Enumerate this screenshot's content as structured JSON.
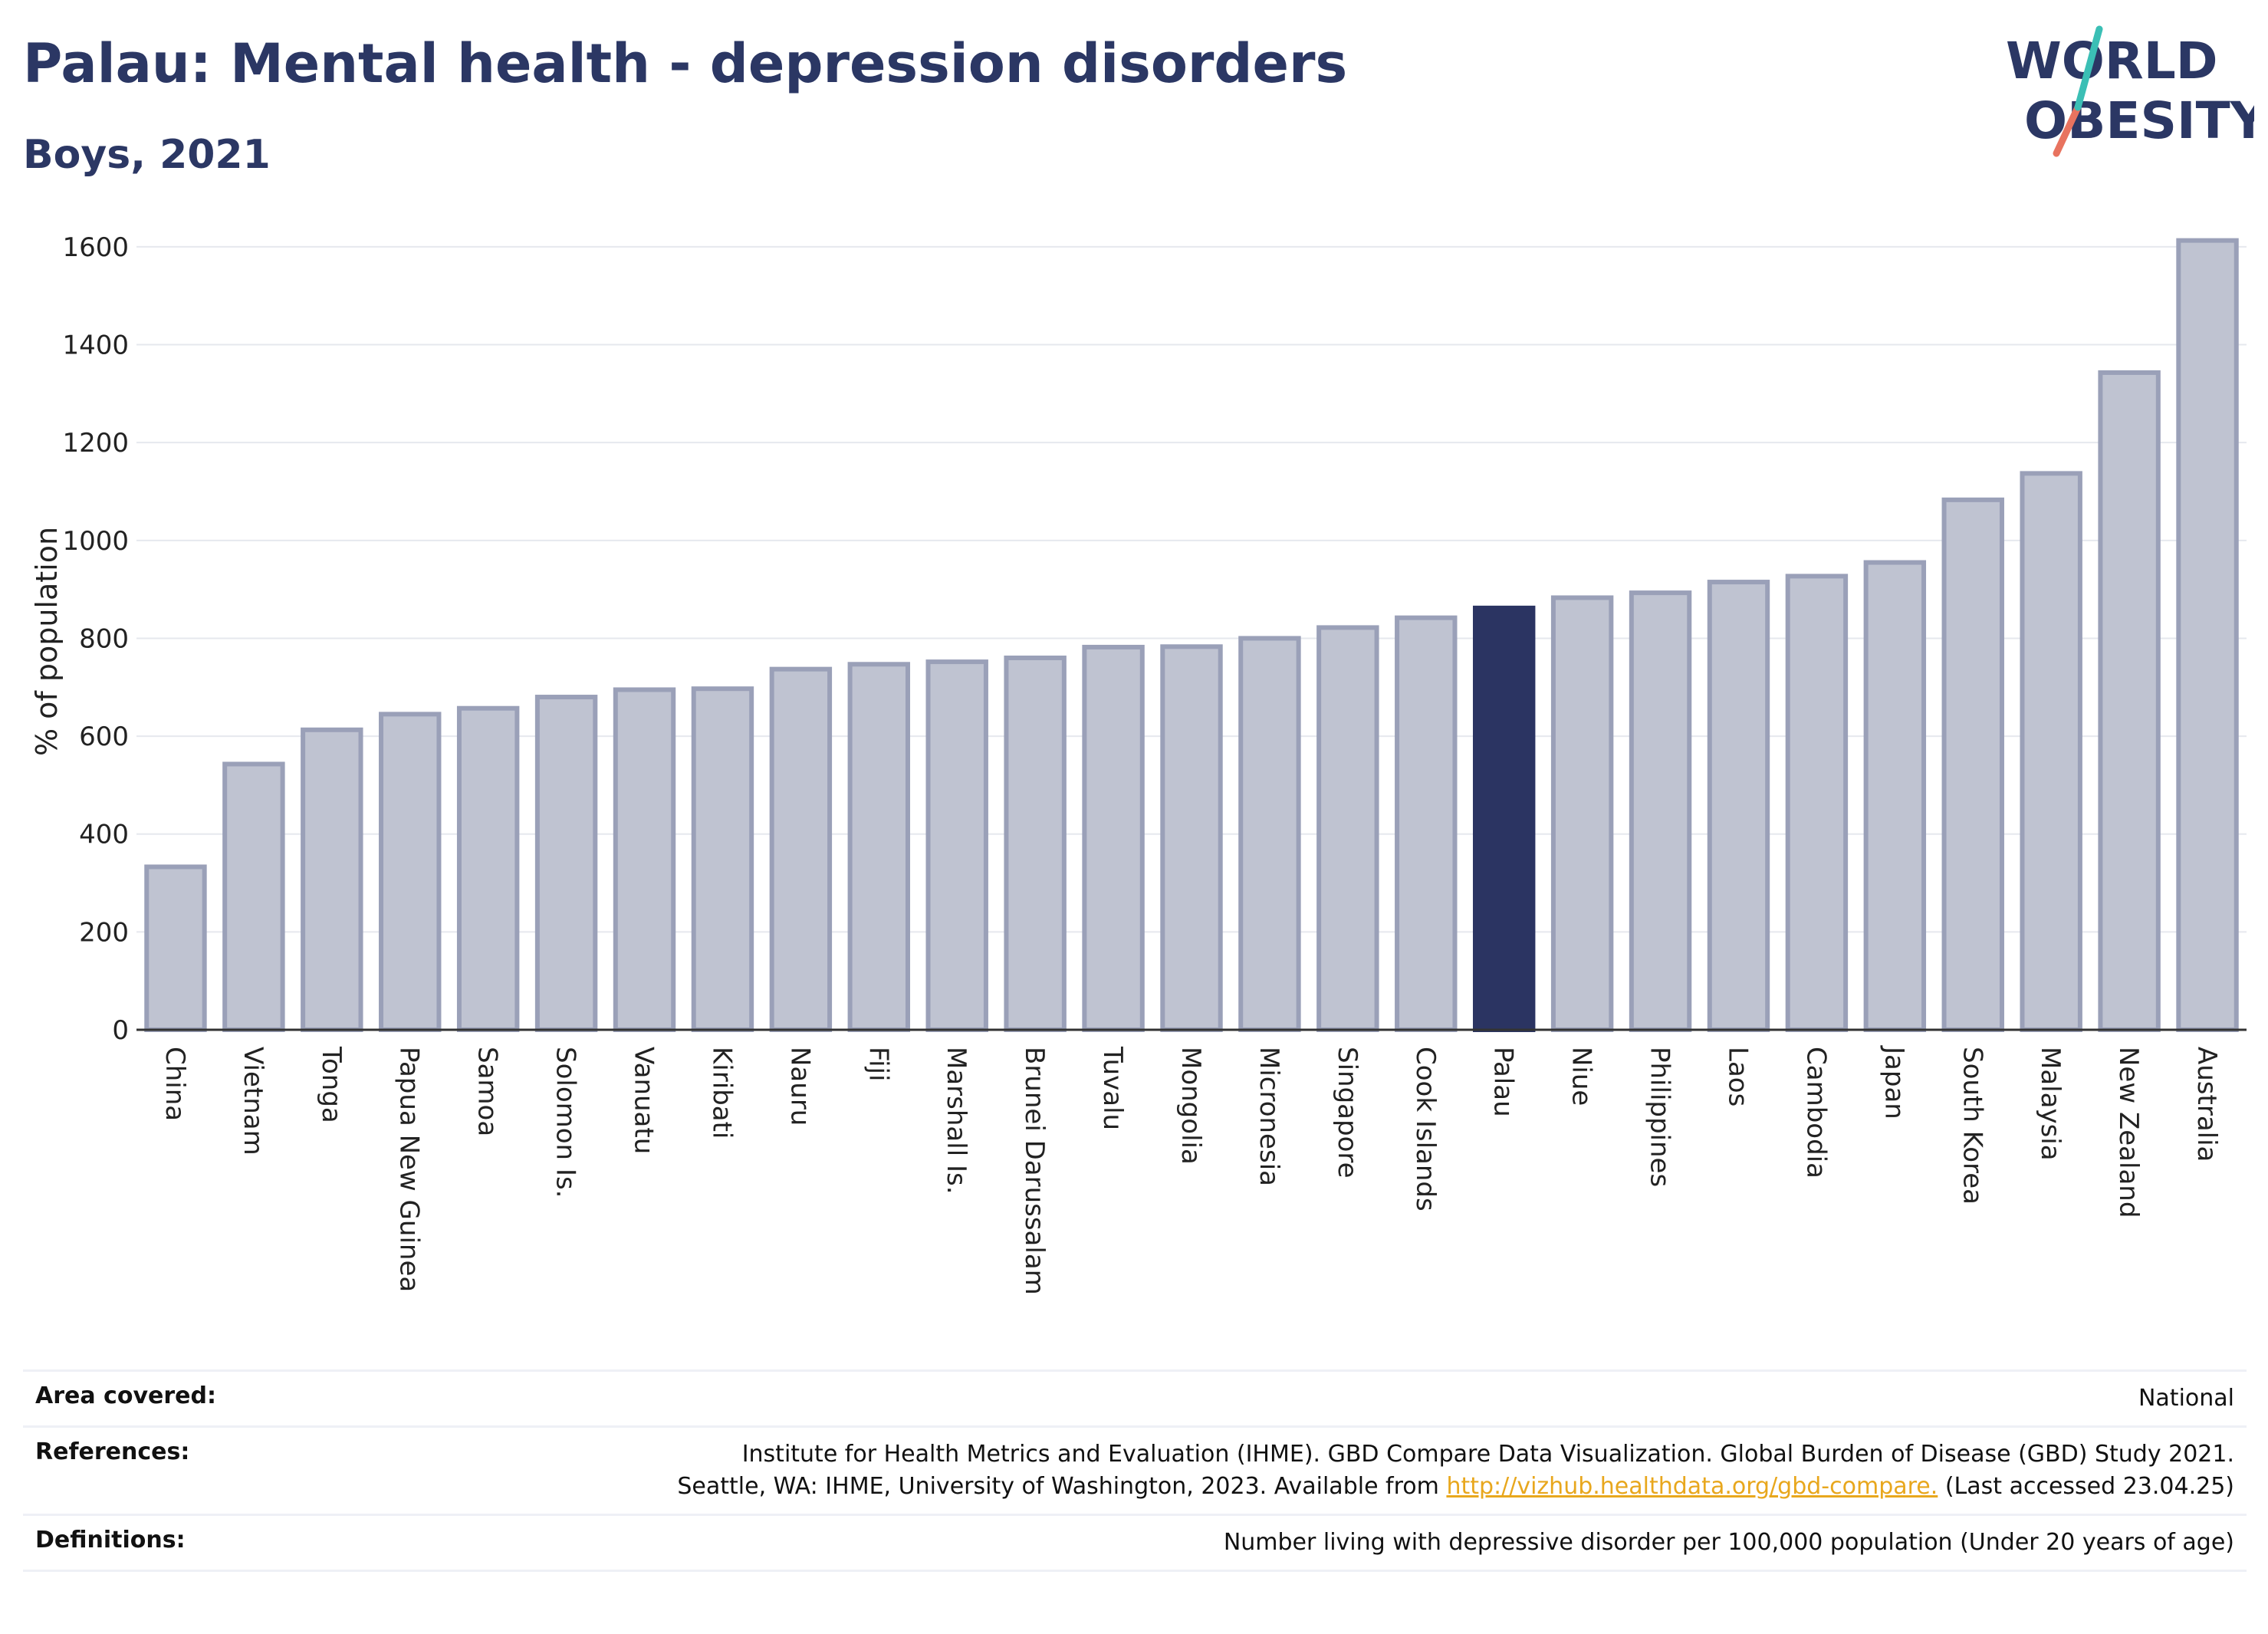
{
  "title": "Palau: Mental health - depression disorders",
  "subtitle": "Boys, 2021",
  "logo": {
    "line1": "WORLD",
    "line2": "OBESITY"
  },
  "colors": {
    "bar": "#bfc3d1",
    "bar_border": "#9aa0b8",
    "highlight": "#2b3462",
    "title": "#2b3764",
    "link": "#e8a71d"
  },
  "chart_data": {
    "type": "bar",
    "ylabel": "% of population",
    "ylim": [
      0,
      1650
    ],
    "yticks": [
      0,
      200,
      400,
      600,
      800,
      1000,
      1200,
      1400,
      1600
    ],
    "grid": true,
    "highlight": "Palau",
    "categories": [
      "China",
      "Vietnam",
      "Tonga",
      "Papua New Guinea",
      "Samoa",
      "Solomon Is.",
      "Vanuatu",
      "Kiribati",
      "Nauru",
      "Fiji",
      "Marshall Is.",
      "Brunei Darussalam",
      "Tuvalu",
      "Mongolia",
      "Micronesia",
      "Singapore",
      "Cook Islands",
      "Palau",
      "Niue",
      "Philippines",
      "Laos",
      "Cambodia",
      "Japan",
      "South Korea",
      "Malaysia",
      "New Zealand",
      "Australia"
    ],
    "values": [
      333,
      543,
      613,
      645,
      657,
      680,
      695,
      697,
      737,
      747,
      752,
      760,
      782,
      783,
      800,
      822,
      842,
      862,
      883,
      893,
      915,
      927,
      955,
      1083,
      1137,
      1343,
      1613
    ]
  },
  "info": {
    "area_label": "Area covered:",
    "area_value": "National",
    "references_label": "References:",
    "references_line1": "Institute for Health Metrics and Evaluation (IHME). GBD Compare Data Visualization. Global Burden of Disease (GBD) Study 2021.",
    "references_line2_pre": "Seattle, WA: IHME, University of Washington, 2023. Available from",
    "references_link": "http://vizhub.healthdata.org/gbd-compare.",
    "references_line2_post": "(Last accessed 23.04.25)",
    "definitions_label": "Definitions:",
    "definitions_value": "Number living with depressive disorder per 100,000 population (Under 20 years of age)"
  }
}
